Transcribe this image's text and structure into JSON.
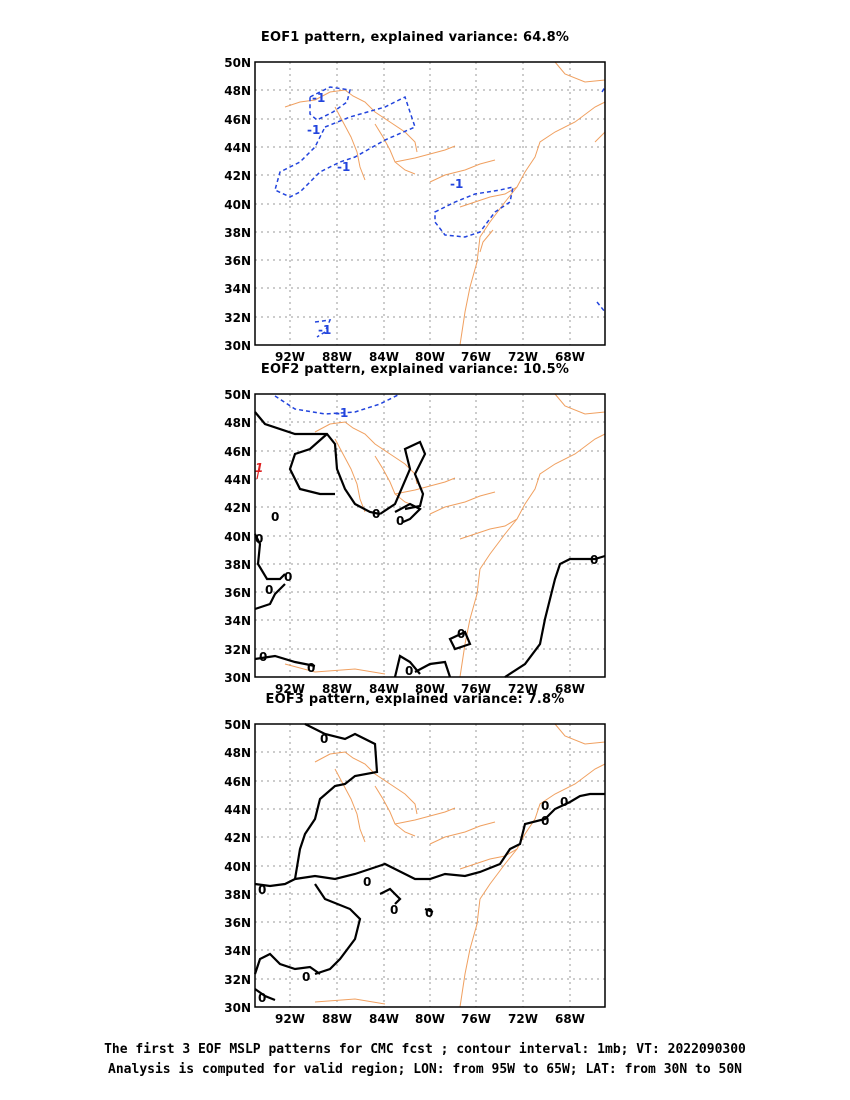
{
  "panels": [
    {
      "title": "EOF1 pattern, explained variance: 64.8%"
    },
    {
      "title": "EOF2 pattern, explained variance: 10.5%"
    },
    {
      "title": "EOF3 pattern, explained variance: 7.8%"
    }
  ],
  "caption": {
    "line1": "The first 3 EOF MSLP patterns for CMC fcst ; contour interval: 1mb; VT: 2022090300",
    "line2": "Analysis is computed for valid region; LON: from 95W to 65W; LAT: from 30N to 50N"
  },
  "axes": {
    "lon_ticks": [
      "92W",
      "88W",
      "84W",
      "80W",
      "76W",
      "72W",
      "68W"
    ],
    "lat_ticks": [
      "50N",
      "48N",
      "46N",
      "44N",
      "42N",
      "40N",
      "38N",
      "36N",
      "34N",
      "32N",
      "30N"
    ]
  },
  "contour_labels": {
    "eof1": [
      "-1",
      "-1",
      "-1",
      "-1",
      "-1"
    ],
    "eof2": [
      "-1",
      "1",
      "0",
      "0",
      "0",
      "0",
      "0",
      "0",
      "0",
      "0",
      "0",
      "0",
      "0"
    ],
    "eof3": [
      "0",
      "0",
      "0",
      "0",
      "0",
      "0",
      "0",
      "0",
      "0",
      "0"
    ]
  },
  "colors": {
    "coast": "#f0a060",
    "negative": "#2244dd",
    "zero": "#000000",
    "positive": "#dd2222",
    "grid": "#999999"
  }
}
